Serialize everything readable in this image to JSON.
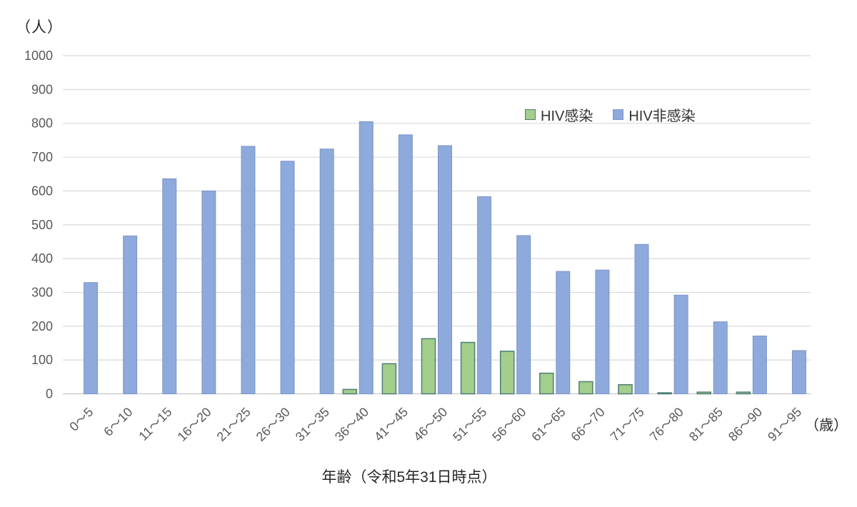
{
  "chart_data": {
    "type": "bar",
    "title": "",
    "xlabel": "年齢（令和5年31日時点）",
    "y_unit_label": "（人）",
    "x_unit_label": "（歳）",
    "ylim": [
      0,
      1000
    ],
    "y_tick_step": 100,
    "grid": true,
    "legend_position": "top-right-inside",
    "categories": [
      "0～5",
      "6～10",
      "11～15",
      "16～20",
      "21～25",
      "26～30",
      "31～35",
      "36～40",
      "41～45",
      "46～50",
      "51～55",
      "56～60",
      "61～65",
      "66～70",
      "71～75",
      "76～80",
      "81～85",
      "86～90",
      "91～95"
    ],
    "series": [
      {
        "name": "HIV感染",
        "color": "#A3CE8B",
        "border_color": "#4E7D78",
        "values": [
          0,
          0,
          0,
          0,
          0,
          0,
          0,
          13,
          89,
          163,
          152,
          126,
          61,
          36,
          27,
          3,
          5,
          5,
          0
        ]
      },
      {
        "name": "HIV非感染",
        "color": "#8EA9DB",
        "border_color": "#7D95C8",
        "values": [
          329,
          467,
          636,
          600,
          732,
          688,
          724,
          805,
          766,
          734,
          583,
          468,
          362,
          366,
          442,
          292,
          213,
          171,
          128
        ]
      }
    ],
    "colors": {
      "gridline": "#D9D9D9",
      "baseline": "#C8C8C8",
      "tick_label": "#595959"
    }
  }
}
